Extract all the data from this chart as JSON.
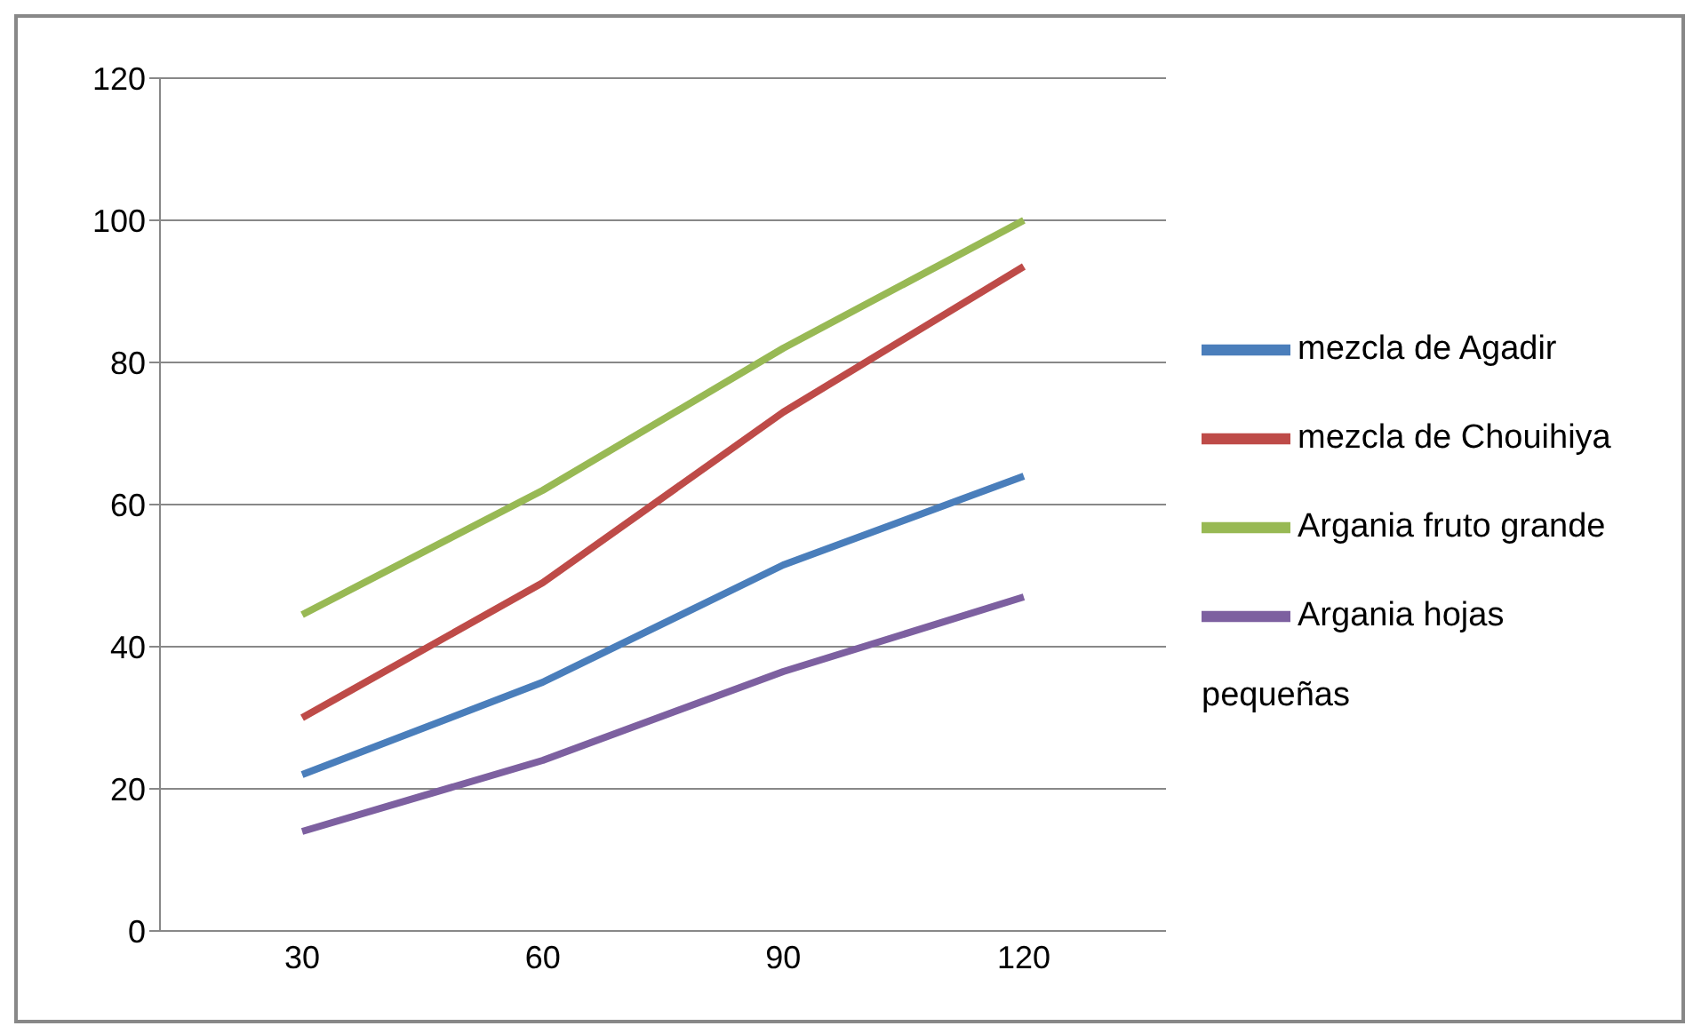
{
  "chart_data": {
    "type": "line",
    "categories": [
      "30",
      "60",
      "90",
      "120"
    ],
    "series": [
      {
        "name": "mezcla de Agadir",
        "color": "#4a7ebb",
        "values": [
          22,
          35,
          51.5,
          64
        ]
      },
      {
        "name": "mezcla de Chouihiya",
        "color": "#be4b48",
        "values": [
          30,
          49,
          73,
          93.5
        ]
      },
      {
        "name": "Argania fruto grande",
        "color": "#98b954",
        "values": [
          44.5,
          62,
          82,
          100
        ]
      },
      {
        "name": "Argania hojas pequeñas",
        "color": "#7d60a0",
        "values": [
          14,
          24,
          36.5,
          47
        ]
      }
    ],
    "ylim": [
      0,
      120
    ],
    "yticks": [
      0,
      20,
      40,
      60,
      80,
      100,
      120
    ],
    "grid": "y",
    "legend": "right",
    "marker": "none",
    "line_style": "solid"
  }
}
